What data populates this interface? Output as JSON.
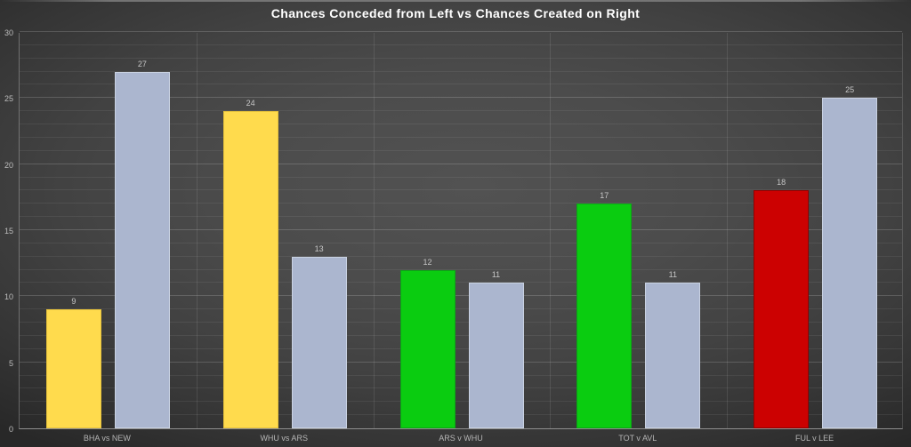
{
  "chart_data": {
    "type": "bar",
    "title": "Chances Conceded from Left vs Chances Created on Right",
    "categories": [
      "BHA vs NEW",
      "WHU vs ARS",
      "ARS v WHU",
      "TOT v AVL",
      "FUL v LEE"
    ],
    "series": [
      {
        "name": "Chances Conceded from Left",
        "values": [
          9,
          24,
          12,
          17,
          18
        ],
        "fill_colors": [
          "#FFDB4D",
          "#FFDB4D",
          "#0ACC10",
          "#0ACC10",
          "#CC0101"
        ],
        "border_colors": [
          "#E5C13C",
          "#E5C13C",
          "#0AA614",
          "#0AA614",
          "#920000"
        ]
      },
      {
        "name": "Chances Created on Right",
        "values": [
          27,
          13,
          11,
          11,
          25
        ],
        "fill_colors": [
          "#ABB6CF",
          "#ABB6CF",
          "#ABB6CF",
          "#ABB6CF",
          "#ABB6CF"
        ],
        "border_colors": [
          "#C9D2E2",
          "#C9D2E2",
          "#C9D2E2",
          "#C9D2E2",
          "#C9D2E2"
        ]
      }
    ],
    "ylim": [
      0,
      30
    ],
    "yticks": [
      0,
      5,
      10,
      15,
      20,
      25,
      30
    ],
    "minor_gridline_unit": 1,
    "major_gridline_unit": 5,
    "grid": "on",
    "legend": "none"
  },
  "colors": {
    "background_center": "#515151",
    "background_edge": "#2a2a2a",
    "title_text": "#ffffff",
    "axis_label": "#bdbdbd",
    "data_label": "#c6c6c6",
    "axis_line": "#8f8f8f",
    "major_gridline": "rgba(255,255,255,0.17)",
    "minor_gridline": "rgba(255,255,255,0.07)"
  }
}
